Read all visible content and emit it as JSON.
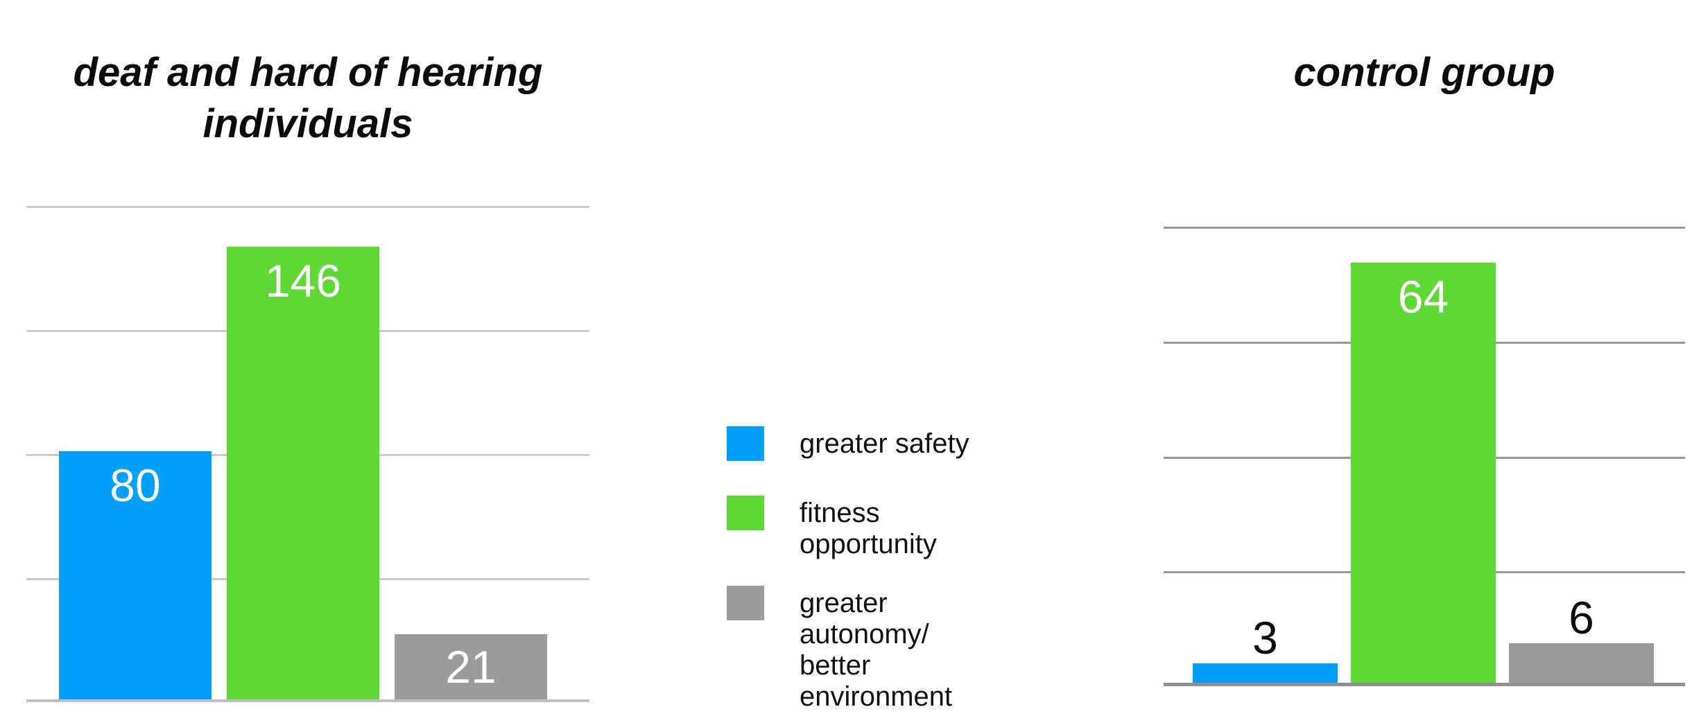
{
  "chart_data": [
    {
      "type": "bar",
      "title": "deaf and hard of hearing\nindividuals",
      "categories": [
        "greater safety",
        "fitness opportunity",
        "greater autonomy/better environment"
      ],
      "values": [
        80,
        146,
        21
      ],
      "value_labels": [
        "80",
        "146",
        "21"
      ],
      "ylim": [
        0,
        160
      ],
      "gridline_step": 40,
      "grid": "horizontal-only",
      "bar_colors": [
        "#00a0fa",
        "#5fd734",
        "#9b9b9b"
      ],
      "value_label_color_inside": "#ffffff"
    },
    {
      "type": "bar",
      "title": "control group",
      "categories": [
        "greater safety",
        "fitness opportunity",
        "greater autonomy/better environment"
      ],
      "values": [
        3,
        64,
        6
      ],
      "value_labels": [
        "3",
        "64",
        "6"
      ],
      "ylim": [
        0,
        70
      ],
      "gridline_step": 17.5,
      "grid": "horizontal-only",
      "bar_colors": [
        "#00a0fa",
        "#5fd734",
        "#9b9b9b"
      ],
      "value_label_color_inside": "#ffffff",
      "value_label_color_above": "#0b0b0b"
    }
  ],
  "legend": {
    "position": "center-between-charts",
    "items": [
      {
        "label": "greater safety",
        "color": "#00a0fa"
      },
      {
        "label": "fitness opportunity",
        "color": "#5fd734"
      },
      {
        "label": "greater autonomy/\nbetter environment",
        "color": "#9b9b9b"
      }
    ]
  }
}
